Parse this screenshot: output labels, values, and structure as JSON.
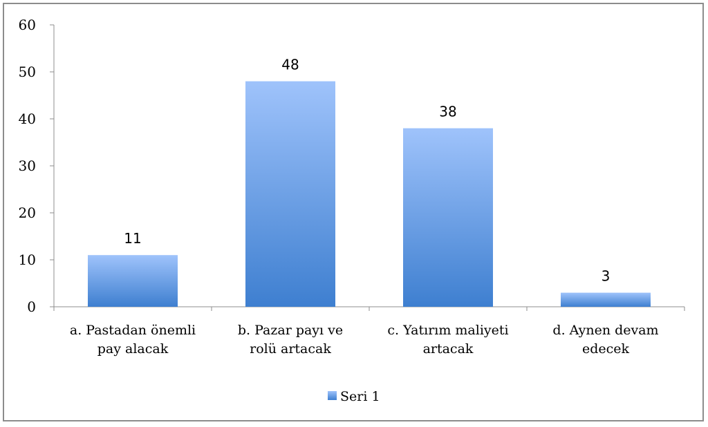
{
  "chart_data": {
    "type": "bar",
    "categories": [
      [
        "a. Pastadan önemli",
        "pay alacak"
      ],
      [
        "b. Pazar payı ve",
        "rolü artacak"
      ],
      [
        "c. Yatırım maliyeti",
        "artacak"
      ],
      [
        "d. Aynen devam",
        "edecek"
      ]
    ],
    "series": [
      {
        "name": "Seri 1",
        "values": [
          11,
          48,
          38,
          3
        ],
        "color_top": "#9fc3fb",
        "color_bottom": "#3e7fd0"
      }
    ],
    "ylim": [
      0,
      60
    ],
    "yticks": [
      0,
      10,
      20,
      30,
      40,
      50,
      60
    ],
    "data_labels": true,
    "grid": false,
    "legend_position": "bottom"
  }
}
